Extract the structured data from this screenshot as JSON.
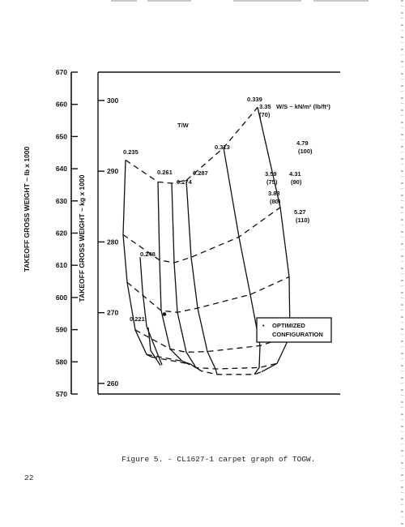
{
  "caption": "Figure 5. - CL1627-1 carpet graph of TOGW.",
  "page_number": "22",
  "colors": {
    "ink": "#111111",
    "paper": "#ffffff"
  },
  "chart_data": {
    "type": "line",
    "title": "",
    "y_axis_lb": {
      "label": "TAKEOFF GROSS WEIGHT ~ lb x 1000",
      "range": [
        570,
        670
      ],
      "ticks": [
        "570",
        "580",
        "590",
        "600",
        "610",
        "620",
        "630",
        "640",
        "650",
        "660",
        "670"
      ]
    },
    "y_axis_kg": {
      "label": "TAKEOFF GROSS WEIGHT ~ kg x 1000",
      "range": [
        258.5,
        304
      ],
      "ticks": [
        "260",
        "270",
        "280",
        "290",
        "300"
      ]
    },
    "tw_family_label": "T/W",
    "ws_family_label": "W/S ~ kN/m² (lb/ft²)",
    "tw_values": [
      "0.221",
      "0.235",
      "0.248",
      "0.261",
      "0.274",
      "0.287",
      "0.313",
      "0.339"
    ],
    "ws_labels": [
      {
        "kN": "3.35",
        "lb": "(70)"
      },
      {
        "kN": "3.59",
        "lb": "(75)"
      },
      {
        "kN": "3.83",
        "lb": "(80)"
      },
      {
        "kN": "4.31",
        "lb": "(90)"
      },
      {
        "kN": "4.79",
        "lb": "(100)"
      },
      {
        "kN": "5.27",
        "lb": "(110)"
      }
    ],
    "ws_curve_levels_lb": [
      [
        642.7,
        635.9,
        635.5,
        636.4,
        646.5,
        659.1
      ],
      [
        619.5,
        611.6,
        610.8,
        612.5,
        618.8,
        628.0
      ],
      [
        604.7,
        595.9,
        595.4,
        596.7,
        600.9,
        606.4
      ],
      [
        589.9,
        584.0,
        583.0,
        583.2,
        585.0,
        588.0
      ],
      [
        582.3,
        580.2,
        578.2,
        577.8,
        578.2,
        579.5
      ],
      [
        581.5,
        579.3,
        577.1,
        576.1,
        576.1,
        576.9
      ]
    ],
    "tw_curves": [
      {
        "tw": "0.235",
        "points_lb": [
          [
            0.235,
            642.7
          ],
          [
            0.233,
            619.5
          ],
          [
            0.23,
            604.7
          ],
          [
            0.226,
            589.9
          ],
          [
            0.22,
            582.3
          ],
          [
            0.215,
            581.5
          ]
        ]
      },
      {
        "tw": "0.261",
        "points_lb": [
          [
            0.261,
            635.9
          ],
          [
            0.259,
            611.6
          ],
          [
            0.257,
            595.9
          ],
          [
            0.253,
            584.0
          ],
          [
            0.248,
            580.2
          ],
          [
            0.245,
            579.3
          ]
        ]
      },
      {
        "tw": "0.274",
        "points_lb": [
          [
            0.274,
            635.5
          ],
          [
            0.272,
            610.8
          ],
          [
            0.269,
            595.4
          ],
          [
            0.265,
            583.0
          ],
          [
            0.261,
            578.2
          ],
          [
            0.258,
            577.1
          ]
        ]
      },
      {
        "tw": "0.287",
        "points_lb": [
          [
            0.287,
            636.4
          ],
          [
            0.285,
            612.5
          ],
          [
            0.282,
            596.7
          ],
          [
            0.278,
            583.2
          ],
          [
            0.274,
            577.8
          ],
          [
            0.271,
            576.1
          ]
        ]
      },
      {
        "tw": "0.313",
        "points_lb": [
          [
            0.313,
            646.5
          ],
          [
            0.311,
            618.8
          ],
          [
            0.307,
            600.9
          ],
          [
            0.302,
            585.0
          ],
          [
            0.298,
            578.2
          ],
          [
            0.295,
            576.1
          ]
        ]
      },
      {
        "tw": "0.339",
        "points_lb": [
          [
            0.339,
            659.1
          ],
          [
            0.336,
            628.0
          ],
          [
            0.333,
            606.4
          ],
          [
            0.328,
            588.0
          ],
          [
            0.323,
            579.5
          ],
          [
            0.32,
            576.9
          ]
        ]
      }
    ],
    "optimized_point_lb": 594.8,
    "legend": {
      "marker": "•",
      "line1": "OPTIMIZED",
      "line2": "CONFIGURATION"
    },
    "grid": false
  }
}
